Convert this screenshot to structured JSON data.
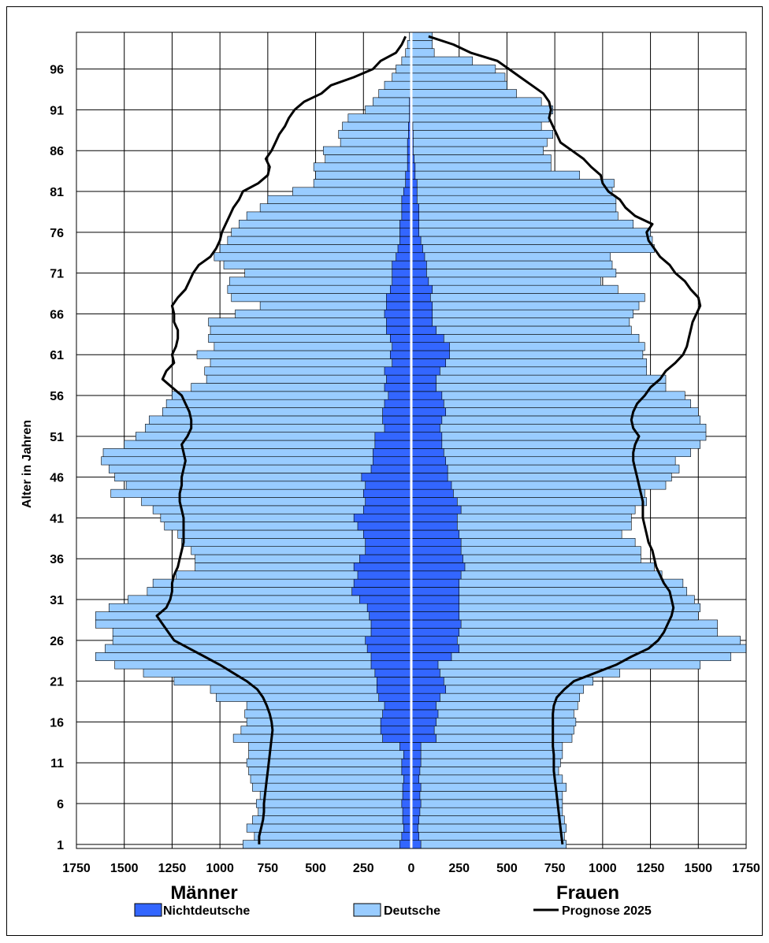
{
  "chart_data": {
    "type": "population_pyramid",
    "ylabel": "Alter in Jahren",
    "left_label": "Männer",
    "right_label": "Frauen",
    "x_ticks": [
      "1750",
      "1500",
      "1250",
      "1000",
      "750",
      "500",
      "250",
      "0",
      "250",
      "500",
      "750",
      "1000",
      "1250",
      "1500",
      "1750"
    ],
    "y_ticks": [
      "96",
      "91",
      "86",
      "81",
      "76",
      "71",
      "66",
      "61",
      "56",
      "51",
      "46",
      "41",
      "36",
      "31",
      "26",
      "21",
      "16",
      "11",
      "6",
      "1"
    ],
    "xlim_each_side": [
      0,
      1750
    ],
    "age_range": [
      1,
      100
    ],
    "grid": true,
    "legend": {
      "position": "bottom",
      "entries": [
        "Nichtdeutsche",
        "Deutsche",
        "Prognose 2025"
      ]
    },
    "colors": {
      "Nichtdeutsche": "#3366ff",
      "Deutsche": "#99ccff",
      "Prognose 2025": "#000000"
    },
    "ages": [
      1,
      2,
      3,
      4,
      5,
      6,
      7,
      8,
      9,
      10,
      11,
      12,
      13,
      14,
      15,
      16,
      17,
      18,
      19,
      20,
      21,
      22,
      23,
      24,
      25,
      26,
      27,
      28,
      29,
      30,
      31,
      32,
      33,
      34,
      35,
      36,
      37,
      38,
      39,
      40,
      41,
      42,
      43,
      44,
      45,
      46,
      47,
      48,
      49,
      50,
      51,
      52,
      53,
      54,
      55,
      56,
      57,
      58,
      59,
      60,
      61,
      62,
      63,
      64,
      65,
      66,
      67,
      68,
      69,
      70,
      71,
      72,
      73,
      74,
      75,
      76,
      77,
      78,
      79,
      80,
      81,
      82,
      83,
      84,
      85,
      86,
      87,
      88,
      89,
      90,
      91,
      92,
      93,
      94,
      95,
      96,
      97,
      98,
      99,
      100
    ],
    "maenner_total": [
      880,
      820,
      860,
      830,
      800,
      810,
      790,
      830,
      840,
      850,
      860,
      850,
      850,
      930,
      890,
      860,
      870,
      860,
      1020,
      1050,
      1240,
      1400,
      1550,
      1650,
      1600,
      1560,
      1560,
      1650,
      1650,
      1580,
      1480,
      1380,
      1350,
      1230,
      1130,
      1130,
      1150,
      1200,
      1220,
      1290,
      1310,
      1350,
      1410,
      1570,
      1490,
      1550,
      1580,
      1620,
      1610,
      1500,
      1440,
      1390,
      1370,
      1300,
      1280,
      1250,
      1150,
      1070,
      1080,
      1050,
      1120,
      1030,
      1060,
      1050,
      1060,
      920,
      790,
      940,
      960,
      950,
      870,
      980,
      1030,
      1000,
      960,
      940,
      900,
      860,
      790,
      750,
      620,
      510,
      500,
      510,
      450,
      460,
      370,
      380,
      360,
      330,
      240,
      200,
      170,
      140,
      100,
      80,
      50,
      30,
      20,
      10
    ],
    "maenner_nichtdeutsche": [
      60,
      50,
      40,
      45,
      45,
      50,
      45,
      45,
      40,
      50,
      50,
      40,
      60,
      150,
      160,
      160,
      150,
      140,
      170,
      180,
      180,
      190,
      210,
      210,
      230,
      240,
      210,
      210,
      220,
      230,
      270,
      310,
      300,
      280,
      300,
      270,
      240,
      240,
      250,
      280,
      300,
      250,
      240,
      250,
      240,
      260,
      210,
      200,
      200,
      190,
      190,
      140,
      150,
      150,
      140,
      120,
      140,
      130,
      140,
      100,
      110,
      100,
      110,
      130,
      130,
      140,
      130,
      130,
      110,
      100,
      100,
      100,
      80,
      70,
      60,
      60,
      60,
      50,
      50,
      50,
      40,
      30,
      30,
      20,
      20,
      20,
      20,
      15,
      15,
      10,
      10,
      10,
      5,
      5,
      5,
      5,
      3,
      2,
      1,
      1
    ],
    "frauen_total": [
      810,
      800,
      810,
      800,
      790,
      790,
      790,
      810,
      790,
      770,
      780,
      790,
      790,
      840,
      850,
      860,
      850,
      870,
      880,
      900,
      950,
      1090,
      1510,
      1670,
      1750,
      1720,
      1600,
      1600,
      1500,
      1510,
      1480,
      1440,
      1420,
      1310,
      1270,
      1200,
      1200,
      1170,
      1100,
      1150,
      1150,
      1170,
      1230,
      1220,
      1330,
      1360,
      1400,
      1380,
      1460,
      1510,
      1540,
      1540,
      1510,
      1500,
      1460,
      1430,
      1330,
      1330,
      1230,
      1230,
      1210,
      1220,
      1190,
      1150,
      1140,
      1160,
      1190,
      1220,
      1080,
      990,
      1070,
      1050,
      1040,
      1270,
      1260,
      1250,
      1160,
      1080,
      1070,
      1070,
      1050,
      1060,
      880,
      730,
      730,
      690,
      710,
      740,
      680,
      720,
      740,
      680,
      550,
      500,
      490,
      440,
      320,
      120,
      110,
      110
    ],
    "frauen_nichtdeutsche": [
      50,
      40,
      35,
      40,
      45,
      50,
      45,
      50,
      40,
      45,
      50,
      50,
      50,
      130,
      120,
      130,
      140,
      130,
      150,
      180,
      170,
      150,
      140,
      210,
      250,
      240,
      250,
      260,
      250,
      250,
      250,
      250,
      250,
      260,
      280,
      270,
      260,
      260,
      250,
      240,
      240,
      260,
      240,
      220,
      210,
      190,
      190,
      180,
      170,
      160,
      160,
      150,
      160,
      180,
      170,
      160,
      130,
      130,
      150,
      180,
      200,
      200,
      170,
      130,
      110,
      110,
      110,
      100,
      110,
      90,
      80,
      80,
      70,
      60,
      50,
      40,
      40,
      40,
      40,
      30,
      30,
      30,
      20,
      20,
      15,
      10,
      10,
      10,
      8,
      5,
      5,
      5,
      5,
      5,
      5,
      5,
      5,
      3,
      2,
      1
    ],
    "prognose_maenner": [
      795,
      795,
      785,
      775,
      770,
      770,
      765,
      760,
      755,
      750,
      745,
      740,
      735,
      730,
      725,
      730,
      740,
      755,
      775,
      805,
      860,
      930,
      1000,
      1080,
      1160,
      1240,
      1270,
      1300,
      1330,
      1280,
      1260,
      1250,
      1250,
      1240,
      1220,
      1210,
      1200,
      1190,
      1190,
      1190,
      1190,
      1200,
      1210,
      1210,
      1200,
      1200,
      1190,
      1180,
      1190,
      1200,
      1170,
      1150,
      1150,
      1160,
      1180,
      1200,
      1250,
      1300,
      1280,
      1240,
      1250,
      1230,
      1220,
      1220,
      1240,
      1240,
      1250,
      1220,
      1180,
      1160,
      1140,
      1110,
      1050,
      1020,
      1000,
      990,
      970,
      950,
      930,
      900,
      880,
      800,
      750,
      740,
      760,
      730,
      710,
      690,
      660,
      640,
      610,
      560,
      470,
      420,
      300,
      200,
      160,
      80,
      50,
      30
    ],
    "prognose_frauen": [
      790,
      785,
      780,
      775,
      770,
      765,
      760,
      755,
      750,
      745,
      745,
      745,
      740,
      740,
      740,
      740,
      740,
      745,
      760,
      800,
      850,
      960,
      1070,
      1150,
      1240,
      1290,
      1320,
      1340,
      1360,
      1370,
      1360,
      1350,
      1320,
      1300,
      1280,
      1270,
      1260,
      1240,
      1230,
      1220,
      1210,
      1210,
      1210,
      1200,
      1190,
      1180,
      1170,
      1160,
      1160,
      1170,
      1190,
      1160,
      1150,
      1160,
      1180,
      1220,
      1250,
      1300,
      1330,
      1380,
      1420,
      1440,
      1450,
      1460,
      1470,
      1490,
      1510,
      1500,
      1460,
      1430,
      1380,
      1350,
      1300,
      1270,
      1240,
      1230,
      1260,
      1170,
      1120,
      1090,
      1030,
      1000,
      990,
      940,
      900,
      840,
      780,
      760,
      740,
      720,
      730,
      720,
      690,
      630,
      570,
      510,
      450,
      310,
      220,
      90
    ]
  }
}
